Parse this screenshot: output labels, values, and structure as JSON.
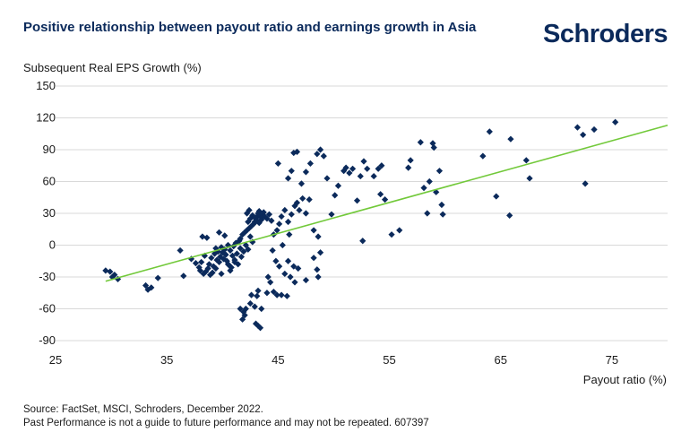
{
  "header": {
    "title": "Positive relationship between payout ratio and earnings growth in Asia",
    "brand": "Schroders"
  },
  "footer": {
    "source": "Source: FactSet, MSCI, Schroders, December 2022.",
    "disclaimer": "Past Performance is not a guide to future performance and may not be repeated. 607397"
  },
  "colors": {
    "points": "#0b2a5b",
    "trend": "#72c93a",
    "grid": "#d9d9d9"
  },
  "chart_data": {
    "type": "scatter",
    "title": "Positive relationship between payout ratio and earnings growth in Asia",
    "xlabel": "Payout ratio (%)",
    "ylabel": "Subsequent Real EPS Growth (%)",
    "xlim": [
      25,
      80
    ],
    "ylim": [
      -90,
      150
    ],
    "xticks": [
      25,
      35,
      45,
      55,
      65,
      75
    ],
    "yticks": [
      -90,
      -60,
      -30,
      0,
      30,
      60,
      90,
      120,
      150
    ],
    "grid": "horizontal",
    "trendline": {
      "x": [
        29.5,
        80
      ],
      "y": [
        -34,
        113
      ]
    },
    "points": [
      [
        29.5,
        -24
      ],
      [
        29.9,
        -25
      ],
      [
        30.1,
        -30
      ],
      [
        30.3,
        -28
      ],
      [
        30.6,
        -32
      ],
      [
        33.1,
        -38
      ],
      [
        33.3,
        -42
      ],
      [
        33.6,
        -40
      ],
      [
        34.2,
        -31
      ],
      [
        36.2,
        -5
      ],
      [
        36.5,
        -29
      ],
      [
        37.2,
        -13
      ],
      [
        37.6,
        -17
      ],
      [
        37.9,
        -21
      ],
      [
        38.0,
        -24
      ],
      [
        38.1,
        -16
      ],
      [
        38.2,
        8
      ],
      [
        38.3,
        -27
      ],
      [
        38.4,
        -10
      ],
      [
        38.5,
        -25
      ],
      [
        38.6,
        7
      ],
      [
        38.7,
        -22
      ],
      [
        38.8,
        -18
      ],
      [
        38.9,
        -28
      ],
      [
        39.0,
        -12
      ],
      [
        39.1,
        -26
      ],
      [
        39.2,
        -20
      ],
      [
        39.3,
        -8
      ],
      [
        39.4,
        -3
      ],
      [
        39.5,
        -14
      ],
      [
        39.6,
        -6
      ],
      [
        39.7,
        -16
      ],
      [
        39.8,
        -11
      ],
      [
        39.9,
        -2
      ],
      [
        40.0,
        -7
      ],
      [
        40.1,
        -13
      ],
      [
        40.2,
        -4
      ],
      [
        40.3,
        -9
      ],
      [
        40.4,
        -15
      ],
      [
        40.5,
        0
      ],
      [
        40.6,
        -19
      ],
      [
        40.7,
        -5
      ],
      [
        40.8,
        -21
      ],
      [
        40.9,
        -10
      ],
      [
        41.0,
        -1
      ],
      [
        41.1,
        -16
      ],
      [
        41.2,
        2
      ],
      [
        41.3,
        -8
      ],
      [
        41.4,
        -18
      ],
      [
        41.5,
        4
      ],
      [
        39.7,
        12
      ],
      [
        40.2,
        9
      ],
      [
        40.7,
        -24
      ],
      [
        41.1,
        -14
      ],
      [
        41.6,
        -3
      ],
      [
        39.4,
        -22
      ],
      [
        39.9,
        -27
      ],
      [
        40.5,
        -18
      ],
      [
        41.6,
        6
      ],
      [
        41.7,
        -11
      ],
      [
        41.8,
        10
      ],
      [
        41.9,
        -6
      ],
      [
        42.0,
        12
      ],
      [
        42.1,
        0
      ],
      [
        42.2,
        14
      ],
      [
        42.3,
        -4
      ],
      [
        42.4,
        16
      ],
      [
        42.5,
        8
      ],
      [
        42.6,
        18
      ],
      [
        42.7,
        3
      ],
      [
        42.8,
        20
      ],
      [
        42.9,
        22
      ],
      [
        43.0,
        25
      ],
      [
        43.1,
        27
      ],
      [
        43.2,
        30
      ],
      [
        43.3,
        32
      ],
      [
        43.4,
        28
      ],
      [
        43.5,
        24
      ],
      [
        43.6,
        29
      ],
      [
        43.7,
        31
      ],
      [
        42.3,
        22
      ],
      [
        42.5,
        25
      ],
      [
        42.7,
        28
      ],
      [
        42.9,
        26
      ],
      [
        43.1,
        23
      ],
      [
        43.3,
        21
      ],
      [
        43.5,
        26
      ],
      [
        43.8,
        27
      ],
      [
        44.0,
        25
      ],
      [
        44.2,
        29
      ],
      [
        44.4,
        23
      ],
      [
        42.2,
        30
      ],
      [
        42.4,
        33
      ],
      [
        41.6,
        -60
      ],
      [
        41.9,
        -63
      ],
      [
        42.0,
        -66
      ],
      [
        42.1,
        -60
      ],
      [
        41.8,
        -70
      ],
      [
        42.5,
        -55
      ],
      [
        42.9,
        -58
      ],
      [
        42.6,
        -47
      ],
      [
        43.1,
        -48
      ],
      [
        43.2,
        -43
      ],
      [
        43.5,
        -60
      ],
      [
        43.0,
        -74
      ],
      [
        43.2,
        -76
      ],
      [
        43.4,
        -78
      ],
      [
        44.0,
        -45
      ],
      [
        44.3,
        -35
      ],
      [
        44.6,
        -44
      ],
      [
        44.9,
        -47
      ],
      [
        45.3,
        -47
      ],
      [
        45.8,
        -48
      ],
      [
        44.1,
        -30
      ],
      [
        44.5,
        -5
      ],
      [
        44.8,
        -15
      ],
      [
        45.1,
        -20
      ],
      [
        45.6,
        -27
      ],
      [
        45.9,
        -15
      ],
      [
        46.1,
        -30
      ],
      [
        46.4,
        -20
      ],
      [
        46.5,
        -35
      ],
      [
        46.8,
        -22
      ],
      [
        47.5,
        -33
      ],
      [
        48.2,
        -12
      ],
      [
        48.5,
        -23
      ],
      [
        48.8,
        -7
      ],
      [
        48.6,
        -30
      ],
      [
        44.6,
        10
      ],
      [
        44.9,
        14
      ],
      [
        45.0,
        77
      ],
      [
        45.1,
        20
      ],
      [
        45.3,
        27
      ],
      [
        45.6,
        33
      ],
      [
        45.9,
        22
      ],
      [
        46.2,
        29
      ],
      [
        46.5,
        37
      ],
      [
        46.7,
        40
      ],
      [
        46.9,
        33
      ],
      [
        47.2,
        44
      ],
      [
        47.5,
        30
      ],
      [
        47.8,
        43
      ],
      [
        48.2,
        14
      ],
      [
        48.5,
        86
      ],
      [
        48.8,
        90
      ],
      [
        49.1,
        84
      ],
      [
        49.4,
        63
      ],
      [
        49.8,
        29
      ],
      [
        45.9,
        63
      ],
      [
        46.2,
        70
      ],
      [
        46.4,
        87
      ],
      [
        46.7,
        88
      ],
      [
        47.1,
        58
      ],
      [
        47.5,
        69
      ],
      [
        47.9,
        77
      ],
      [
        48.6,
        8
      ],
      [
        46.0,
        10
      ],
      [
        45.4,
        0
      ],
      [
        50.1,
        47
      ],
      [
        50.4,
        56
      ],
      [
        50.9,
        70
      ],
      [
        51.1,
        73
      ],
      [
        51.4,
        68
      ],
      [
        51.7,
        72
      ],
      [
        52.1,
        42
      ],
      [
        52.4,
        65
      ],
      [
        52.7,
        79
      ],
      [
        53.0,
        72
      ],
      [
        53.6,
        65
      ],
      [
        54.0,
        72
      ],
      [
        54.3,
        75
      ],
      [
        54.2,
        48
      ],
      [
        54.6,
        43
      ],
      [
        52.6,
        4
      ],
      [
        55.2,
        10
      ],
      [
        55.9,
        14
      ],
      [
        56.7,
        73
      ],
      [
        56.9,
        80
      ],
      [
        57.8,
        97
      ],
      [
        58.1,
        54
      ],
      [
        58.4,
        30
      ],
      [
        58.6,
        60
      ],
      [
        58.9,
        96
      ],
      [
        59.0,
        92
      ],
      [
        59.2,
        50
      ],
      [
        59.5,
        70
      ],
      [
        59.7,
        38
      ],
      [
        59.8,
        29
      ],
      [
        63.4,
        84
      ],
      [
        64.0,
        107
      ],
      [
        64.6,
        46
      ],
      [
        65.8,
        28
      ],
      [
        65.9,
        100
      ],
      [
        67.3,
        80
      ],
      [
        67.6,
        63
      ],
      [
        71.9,
        111
      ],
      [
        72.4,
        104
      ],
      [
        72.6,
        58
      ],
      [
        73.4,
        109
      ],
      [
        75.3,
        116
      ]
    ]
  }
}
